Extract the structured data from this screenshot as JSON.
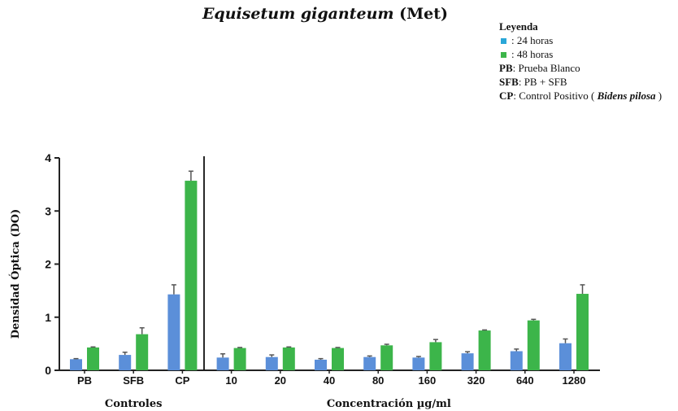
{
  "title": {
    "italic": "Equisetum giganteum",
    "rest": "(Met)"
  },
  "legend": {
    "title": "Leyenda",
    "entries": [
      {
        "color": "#2aa7d8",
        "text": ": 24 horas"
      },
      {
        "color": "#3cb54a",
        "text": ": 48 horas"
      }
    ],
    "definitions": [
      {
        "abbr": "PB",
        "text": ": Prueba Blanco",
        "italic": "",
        "after": ""
      },
      {
        "abbr": "SFB",
        "text": ": PB + SFB",
        "italic": "",
        "after": ""
      },
      {
        "abbr": "CP",
        "text": ": Control Positivo ( ",
        "italic": "Bidens pilosa",
        "after": " )"
      }
    ]
  },
  "chart_data": {
    "type": "bar",
    "ylabel": "Densidad Óptica (DO)",
    "ylim": [
      0,
      4
    ],
    "yticks": [
      "0",
      "1",
      "2",
      "3",
      "4"
    ],
    "categories": [
      "PB",
      "SFB",
      "CP",
      "10",
      "20",
      "40",
      "80",
      "160",
      "320",
      "640",
      "1280"
    ],
    "group_labels": [
      "Controles",
      "Concentración µg/ml"
    ],
    "series": [
      {
        "color": "#5b8fd9",
        "values": [
          0.21,
          0.29,
          1.43,
          0.24,
          0.25,
          0.2,
          0.25,
          0.24,
          0.32,
          0.36,
          0.51
        ],
        "errors": [
          0.01,
          0.05,
          0.18,
          0.07,
          0.04,
          0.02,
          0.02,
          0.02,
          0.03,
          0.04,
          0.08
        ]
      },
      {
        "color": "#3cb54a",
        "values": [
          0.43,
          0.68,
          3.57,
          0.42,
          0.43,
          0.42,
          0.47,
          0.53,
          0.75,
          0.94,
          1.44
        ],
        "errors": [
          0.01,
          0.12,
          0.18,
          0.01,
          0.01,
          0.01,
          0.02,
          0.05,
          0.01,
          0.02,
          0.17
        ]
      }
    ],
    "divider_after_index": 2,
    "grid": false
  }
}
